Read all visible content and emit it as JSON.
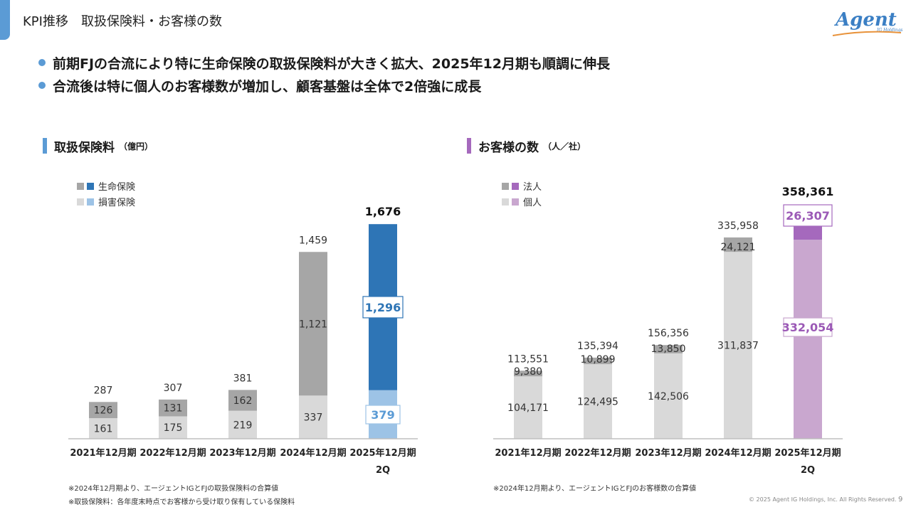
{
  "header": {
    "title": "KPI推移　取扱保険料・お客様の数"
  },
  "bullets": [
    "前期FJの合流により特に生命保険の取扱保険料が大きく拡大、2025年12月期も順調に伸長",
    "合流後は特に個人のお客様数が増加し、顧客基盤は全体で2倍強に成長"
  ],
  "colors": {
    "accent_blue": "#5b9bd5",
    "accent_purple": "#a569bd",
    "life_hist": "#a6a6a6",
    "nonlife_hist": "#d9d9d9",
    "life_cur": "#2e75b6",
    "nonlife_cur": "#9dc3e6",
    "corp_cur": "#a569bd",
    "indiv_cur": "#c9a7cf"
  },
  "footer": {
    "note_premium_1": "※2024年12月期より、エージェントIGとFJの取扱保険料の合算値",
    "note_premium_2": "※取扱保険料：各年度末時点でお客様から受け取り保有している保険料",
    "note_customers": "※2024年12月期より、エージェントIGとFJのお客様数の合算値",
    "copyright": "© 2025 Agent IG Holdings, Inc. All Rights Reserved.",
    "page_number": "9"
  },
  "chart_data": [
    {
      "type": "bar",
      "stacked": true,
      "title": "取扱保険料",
      "unit": "（億円）",
      "categories": [
        "2021年12月期",
        "2022年12月期",
        "2023年12月期",
        "2024年12月期",
        "2025年12月期\n2Q"
      ],
      "series": [
        {
          "name": "損害保険",
          "values": [
            161,
            175,
            219,
            337,
            379
          ]
        },
        {
          "name": "生命保険",
          "values": [
            126,
            131,
            162,
            1121,
            1296
          ]
        }
      ],
      "totals": [
        287,
        307,
        381,
        1459,
        1676
      ],
      "legend_order": [
        "生命保険",
        "損害保険"
      ],
      "ylim": [
        0,
        1700
      ]
    },
    {
      "type": "bar",
      "stacked": true,
      "title": "お客様の数",
      "unit": "（人／社）",
      "categories": [
        "2021年12月期",
        "2022年12月期",
        "2023年12月期",
        "2024年12月期",
        "2025年12月期\n2Q"
      ],
      "series": [
        {
          "name": "個人",
          "values": [
            104171,
            124495,
            142506,
            311837,
            332054
          ]
        },
        {
          "name": "法人",
          "values": [
            9380,
            10899,
            13850,
            24121,
            26307
          ]
        }
      ],
      "totals": [
        113551,
        135394,
        156356,
        335958,
        358361
      ],
      "legend_order": [
        "法人",
        "個人"
      ],
      "ylim": [
        0,
        363000
      ]
    }
  ]
}
